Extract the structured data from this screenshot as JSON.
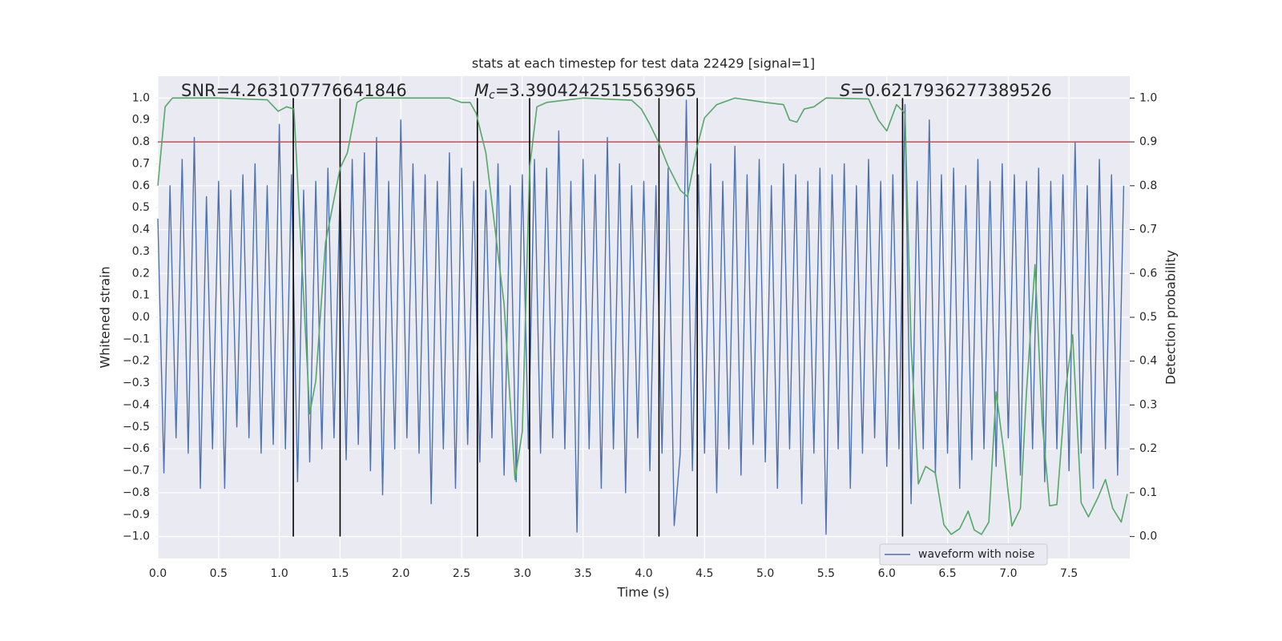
{
  "chart_data": {
    "type": "line",
    "title": "stats at each timestep for test data 22429 [signal=1]",
    "xlabel": "Time (s)",
    "ylabel": "Whitened strain",
    "y2label": "Detection probability",
    "annotations": [
      {
        "text": "SNR=4.263107776641846"
      },
      {
        "symbol": "M",
        "subscript": "c",
        "text": "=3.3904242515563965"
      },
      {
        "symbol": "S",
        "text": "=0.6217936277389526"
      }
    ],
    "xlim": [
      0,
      8.0
    ],
    "ylim": [
      -1.1,
      1.1
    ],
    "y2lim": [
      -0.05,
      1.05
    ],
    "grid": true,
    "legend": "lower right",
    "xticks": [
      {
        "value": 0,
        "label": "0.0"
      },
      {
        "value": 0.5,
        "label": "0.5"
      },
      {
        "value": 1,
        "label": "1.0"
      },
      {
        "value": 1.5,
        "label": "1.5"
      },
      {
        "value": 2,
        "label": "2.0"
      },
      {
        "value": 2.5,
        "label": "2.5"
      },
      {
        "value": 3,
        "label": "3.0"
      },
      {
        "value": 3.5,
        "label": "3.5"
      },
      {
        "value": 4,
        "label": "4.0"
      },
      {
        "value": 4.5,
        "label": "4.5"
      },
      {
        "value": 5,
        "label": "5.0"
      },
      {
        "value": 5.5,
        "label": "5.5"
      },
      {
        "value": 6,
        "label": "6.0"
      },
      {
        "value": 6.5,
        "label": "6.5"
      },
      {
        "value": 7,
        "label": "7.0"
      },
      {
        "value": 7.5,
        "label": "7.5"
      }
    ],
    "yticks": [
      {
        "value": 1,
        "label": "1.0"
      },
      {
        "value": 0.9,
        "label": "0.9"
      },
      {
        "value": 0.8,
        "label": "0.8"
      },
      {
        "value": 0.7,
        "label": "0.7"
      },
      {
        "value": 0.6,
        "label": "0.6"
      },
      {
        "value": 0.5,
        "label": "0.5"
      },
      {
        "value": 0.4,
        "label": "0.4"
      },
      {
        "value": 0.3,
        "label": "0.3"
      },
      {
        "value": 0.2,
        "label": "0.2"
      },
      {
        "value": 0.1,
        "label": "0.1"
      },
      {
        "value": 0,
        "label": "0.0"
      },
      {
        "value": -0.1,
        "label": "−0.1"
      },
      {
        "value": -0.2,
        "label": "−0.2"
      },
      {
        "value": -0.3,
        "label": "−0.3"
      },
      {
        "value": -0.4,
        "label": "−0.4"
      },
      {
        "value": -0.5,
        "label": "−0.5"
      },
      {
        "value": -0.6,
        "label": "−0.6"
      },
      {
        "value": -0.7,
        "label": "−0.7"
      },
      {
        "value": -0.8,
        "label": "−0.8"
      },
      {
        "value": -0.9,
        "label": "−0.9"
      },
      {
        "value": -1,
        "label": "−1.0"
      }
    ],
    "y2ticks": [
      {
        "value": 1,
        "label": "1.0"
      },
      {
        "value": 0.9,
        "label": "0.9"
      },
      {
        "value": 0.8,
        "label": "0.8"
      },
      {
        "value": 0.7,
        "label": "0.7"
      },
      {
        "value": 0.6,
        "label": "0.6"
      },
      {
        "value": 0.5,
        "label": "0.5"
      },
      {
        "value": 0.4,
        "label": "0.4"
      },
      {
        "value": 0.3,
        "label": "0.3"
      },
      {
        "value": 0.2,
        "label": "0.2"
      },
      {
        "value": 0.1,
        "label": "0.1"
      },
      {
        "value": 0,
        "label": "0.0"
      }
    ],
    "threshold": {
      "value": 0.8,
      "color": "#c44e52"
    },
    "vlines": {
      "values": [
        1.115,
        1.5,
        2.63,
        3.06,
        4.125,
        4.44,
        6.13
      ],
      "ylim": [
        -1,
        1
      ],
      "color": "#000000"
    },
    "series": [
      {
        "name": "waveform with noise",
        "color": "#4c72b0",
        "x": [
          0,
          0.05,
          0.1,
          0.15,
          0.2,
          0.25,
          0.3,
          0.35,
          0.4,
          0.45,
          0.5,
          0.55,
          0.6,
          0.65,
          0.7,
          0.75,
          0.8,
          0.85,
          0.9,
          0.95,
          1,
          1.05,
          1.1,
          1.15,
          1.2,
          1.25,
          1.3,
          1.35,
          1.4,
          1.45,
          1.5,
          1.55,
          1.6,
          1.65,
          1.7,
          1.75,
          1.8,
          1.85,
          1.9,
          1.95,
          2,
          2.05,
          2.1,
          2.15,
          2.2,
          2.25,
          2.3,
          2.35,
          2.4,
          2.45,
          2.5,
          2.55,
          2.6,
          2.65,
          2.7,
          2.75,
          2.8,
          2.85,
          2.9,
          2.95,
          3,
          3.05,
          3.1,
          3.15,
          3.2,
          3.25,
          3.3,
          3.35,
          3.4,
          3.45,
          3.5,
          3.55,
          3.6,
          3.65,
          3.7,
          3.75,
          3.8,
          3.85,
          3.9,
          3.95,
          4,
          4.05,
          4.1,
          4.15,
          4.2,
          4.25,
          4.3,
          4.35,
          4.4,
          4.45,
          4.5,
          4.55,
          4.6,
          4.65,
          4.7,
          4.75,
          4.8,
          4.85,
          4.9,
          4.95,
          5,
          5.05,
          5.1,
          5.15,
          5.2,
          5.25,
          5.3,
          5.35,
          5.4,
          5.45,
          5.5,
          5.55,
          5.6,
          5.65,
          5.7,
          5.75,
          5.8,
          5.85,
          5.9,
          5.95,
          6,
          6.05,
          6.1,
          6.15,
          6.2,
          6.25,
          6.3,
          6.35,
          6.4,
          6.45,
          6.5,
          6.55,
          6.6,
          6.65,
          6.7,
          6.75,
          6.8,
          6.85,
          6.9,
          6.95,
          7,
          7.05,
          7.1,
          7.15,
          7.2,
          7.25,
          7.3,
          7.35,
          7.4,
          7.45,
          7.5,
          7.55,
          7.6,
          7.65,
          7.7,
          7.75,
          7.8,
          7.85,
          7.9,
          7.95
        ],
        "values": [
          0.45,
          -0.71,
          0.6,
          -0.55,
          0.72,
          -0.62,
          0.82,
          -0.78,
          0.55,
          -0.6,
          0.62,
          -0.78,
          0.58,
          -0.5,
          0.65,
          -0.55,
          0.7,
          -0.62,
          0.6,
          -0.58,
          0.88,
          -0.6,
          0.65,
          -0.75,
          0.58,
          -0.66,
          0.62,
          -0.6,
          0.68,
          -0.55,
          0.6,
          -0.65,
          0.72,
          -0.58,
          0.75,
          -0.7,
          0.82,
          -0.81,
          0.62,
          -0.6,
          0.9,
          -0.55,
          0.7,
          -0.62,
          0.65,
          -0.85,
          0.62,
          -0.6,
          0.75,
          -0.78,
          0.68,
          -0.58,
          0.62,
          -0.66,
          0.58,
          -0.55,
          0.7,
          -0.72,
          0.6,
          -0.75,
          0.65,
          -0.6,
          0.72,
          -0.62,
          0.68,
          -0.55,
          0.85,
          -0.6,
          0.62,
          -0.98,
          0.72,
          -0.6,
          0.65,
          -0.78,
          0.82,
          -0.6,
          0.7,
          -0.8,
          0.6,
          -0.55,
          0.62,
          -0.7,
          0.6,
          -0.62,
          0.68,
          -0.95,
          -0.62,
          0.99,
          -0.7,
          0.65,
          -0.62,
          0.7,
          -0.8,
          0.62,
          -0.6,
          0.78,
          -0.72,
          0.65,
          -0.58,
          0.72,
          -0.66,
          0.6,
          -0.78,
          0.7,
          -0.6,
          0.65,
          -0.85,
          0.62,
          -0.62,
          0.68,
          -0.99,
          0.65,
          -0.6,
          0.7,
          -0.78,
          0.6,
          -0.62,
          0.72,
          -0.55,
          0.62,
          -0.68,
          0.65,
          -0.6,
          0.97,
          -0.85,
          0.62,
          -0.6,
          0.9,
          -0.72,
          0.65,
          -0.62,
          0.68,
          -0.78,
          0.6,
          -0.65,
          0.72,
          -0.6,
          0.62,
          -0.68,
          0.7,
          -0.55,
          0.65,
          -0.72,
          0.62,
          -0.6,
          0.68,
          -0.75,
          0.62,
          -0.6,
          0.65,
          -0.7,
          0.8,
          -0.62,
          0.6,
          -0.78,
          0.72,
          -0.6,
          0.65,
          -0.72,
          0.6
        ]
      },
      {
        "color": "#55a868",
        "axis": "y2",
        "x": [
          0,
          0.06,
          0.12,
          0.5,
          0.9,
          0.99,
          1.06,
          1.12,
          1.25,
          1.3,
          1.38,
          1.5,
          1.56,
          1.64,
          1.7,
          2.4,
          2.5,
          2.57,
          2.62,
          2.7,
          2.85,
          2.94,
          3.0,
          3.06,
          3.12,
          3.2,
          3.5,
          3.9,
          3.98,
          4.05,
          4.12,
          4.2,
          4.3,
          4.36,
          4.44,
          4.5,
          4.6,
          4.75,
          5.0,
          5.15,
          5.2,
          5.26,
          5.32,
          5.4,
          5.5,
          5.85,
          5.93,
          6.0,
          6.08,
          6.15,
          6.2,
          6.26,
          6.32,
          6.4,
          6.47,
          6.53,
          6.6,
          6.67,
          6.72,
          6.78,
          6.84,
          6.9,
          6.96,
          7.03,
          7.1,
          7.15,
          7.22,
          7.28,
          7.34,
          7.4,
          7.47,
          7.53,
          7.6,
          7.66,
          7.74,
          7.8,
          7.86,
          7.93,
          7.98
        ],
        "values": [
          0.8,
          0.98,
          1.0,
          1.0,
          0.996,
          0.97,
          0.98,
          0.975,
          0.28,
          0.355,
          0.67,
          0.84,
          0.875,
          0.99,
          1.0,
          1.0,
          0.99,
          0.99,
          0.965,
          0.875,
          0.53,
          0.13,
          0.24,
          0.84,
          0.98,
          0.99,
          1.0,
          0.995,
          0.975,
          0.94,
          0.9,
          0.845,
          0.79,
          0.775,
          0.89,
          0.955,
          0.985,
          1.0,
          0.99,
          0.985,
          0.95,
          0.945,
          0.975,
          0.98,
          1.0,
          0.998,
          0.95,
          0.925,
          0.985,
          0.965,
          0.44,
          0.12,
          0.16,
          0.145,
          0.027,
          0.005,
          0.018,
          0.058,
          0.015,
          0.005,
          0.033,
          0.33,
          0.2,
          0.024,
          0.064,
          0.33,
          0.62,
          0.26,
          0.07,
          0.073,
          0.33,
          0.46,
          0.077,
          0.045,
          0.09,
          0.13,
          0.064,
          0.033,
          0.097
        ]
      }
    ]
  }
}
